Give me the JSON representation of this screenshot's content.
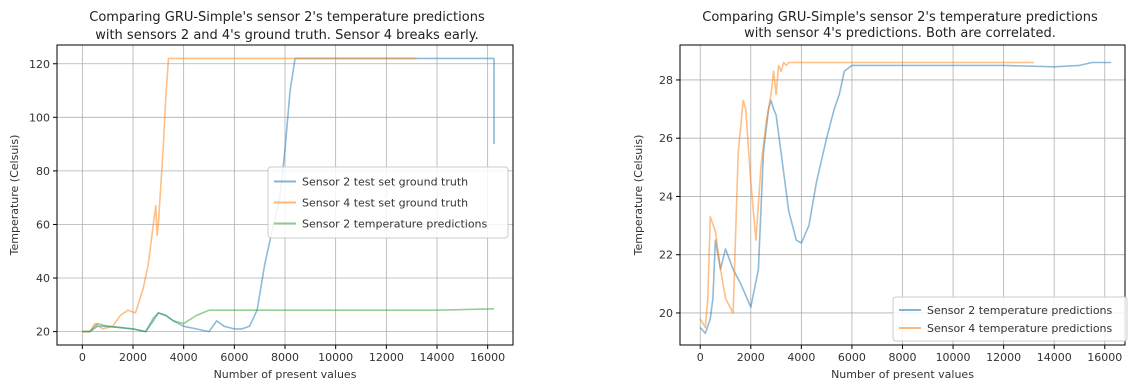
{
  "chart_data": [
    {
      "type": "line",
      "title": [
        "Comparing GRU-Simple's sensor 2's temperature predictions",
        "with sensors 2 and 4's ground truth. Sensor 4 breaks early."
      ],
      "xlabel": "Number of present values",
      "ylabel": "Temperature (Celsuis)",
      "xlim": [
        -1000,
        17000
      ],
      "ylim": [
        15,
        127
      ],
      "xticks": [
        0,
        2000,
        4000,
        6000,
        8000,
        10000,
        12000,
        14000,
        16000
      ],
      "yticks": [
        20,
        40,
        60,
        80,
        100,
        120
      ],
      "grid": true,
      "legend_position": "center-right",
      "series": [
        {
          "name": "Sensor 2 test set ground truth",
          "color": "#1f77b4",
          "x": [
            0,
            300,
            600,
            1000,
            1500,
            2000,
            2500,
            2800,
            3000,
            3300,
            3600,
            4000,
            4500,
            5000,
            5300,
            5600,
            6000,
            6300,
            6600,
            6900,
            7200,
            7500,
            7800,
            8000,
            8200,
            8400,
            9000,
            10000,
            12000,
            14000,
            16000,
            16250,
            16250
          ],
          "y": [
            20,
            20,
            22,
            22,
            21.5,
            21,
            20,
            24,
            27,
            26,
            24,
            22,
            21,
            20,
            24,
            22,
            21,
            21,
            22,
            28,
            45,
            58,
            70,
            88,
            110,
            122,
            122,
            122,
            122,
            122,
            122,
            122,
            90
          ]
        },
        {
          "name": "Sensor 4 test set ground truth",
          "color": "#ff7f0e",
          "x": [
            0,
            300,
            500,
            800,
            1200,
            1500,
            1800,
            2100,
            2400,
            2600,
            2800,
            2900,
            2950,
            3000,
            3100,
            3200,
            3300,
            3350,
            3400,
            4000,
            6000,
            8000,
            10000,
            12000,
            13200
          ],
          "y": [
            20,
            20,
            23,
            21,
            22,
            26,
            28,
            27,
            36,
            45,
            60,
            67,
            56,
            60,
            75,
            90,
            108,
            115,
            122,
            122,
            122,
            122,
            122,
            122,
            122
          ]
        },
        {
          "name": "Sensor 2 temperature predictions",
          "color": "#2ca02c",
          "x": [
            0,
            300,
            600,
            1000,
            1500,
            2000,
            2500,
            2800,
            3000,
            3300,
            3600,
            4000,
            4500,
            5000,
            5300,
            5600,
            6000,
            7000,
            8000,
            10000,
            12000,
            14000,
            16250
          ],
          "y": [
            20,
            20,
            23,
            22,
            21.5,
            21,
            20,
            25,
            27,
            26,
            24,
            23,
            26,
            28,
            28,
            28,
            28,
            28,
            28,
            28,
            28,
            28,
            28.5
          ]
        }
      ]
    },
    {
      "type": "line",
      "title": [
        "Comparing GRU-Simple's sensor 2's temperature predictions",
        "with sensor 4's predictions. Both are correlated."
      ],
      "xlabel": "Number of present values",
      "ylabel": "Temperature (Celsuis)",
      "xlim": [
        -800,
        16800
      ],
      "ylim": [
        18.9,
        29.2
      ],
      "xticks": [
        0,
        2000,
        4000,
        6000,
        8000,
        10000,
        12000,
        14000,
        16000
      ],
      "yticks": [
        20,
        22,
        24,
        26,
        28
      ],
      "grid": true,
      "legend_position": "lower-right",
      "series": [
        {
          "name": "Sensor 2 temperature predictions",
          "color": "#1f77b4",
          "x": [
            0,
            200,
            400,
            500,
            600,
            800,
            1000,
            1300,
            1600,
            2000,
            2300,
            2500,
            2700,
            2800,
            2900,
            3000,
            3200,
            3500,
            3800,
            4000,
            4300,
            4600,
            5000,
            5300,
            5500,
            5700,
            6000,
            7000,
            8000,
            10000,
            12000,
            14000,
            15000,
            15500,
            16250
          ],
          "y": [
            19.5,
            19.3,
            19.8,
            20.5,
            22.5,
            21.5,
            22.2,
            21.5,
            21.0,
            20.2,
            21.5,
            25.5,
            27.0,
            27.3,
            27.0,
            26.8,
            25.5,
            23.5,
            22.5,
            22.4,
            23.0,
            24.5,
            26.0,
            27.0,
            27.5,
            28.3,
            28.5,
            28.5,
            28.5,
            28.5,
            28.5,
            28.45,
            28.5,
            28.6,
            28.6
          ]
        },
        {
          "name": "Sensor 4 temperature predictions",
          "color": "#ff7f0e",
          "x": [
            0,
            200,
            300,
            400,
            600,
            800,
            1000,
            1300,
            1500,
            1700,
            1800,
            2000,
            2200,
            2400,
            2600,
            2800,
            2900,
            3000,
            3100,
            3200,
            3300,
            3400,
            3500,
            4000,
            6000,
            8000,
            10000,
            12000,
            13200
          ],
          "y": [
            19.8,
            19.5,
            20.5,
            23.3,
            22.8,
            21.5,
            20.5,
            20.0,
            25.5,
            27.3,
            27.0,
            24.5,
            22.5,
            25.0,
            26.5,
            27.5,
            28.3,
            27.5,
            28.5,
            28.3,
            28.6,
            28.5,
            28.6,
            28.6,
            28.6,
            28.6,
            28.6,
            28.6,
            28.6
          ]
        }
      ]
    }
  ]
}
